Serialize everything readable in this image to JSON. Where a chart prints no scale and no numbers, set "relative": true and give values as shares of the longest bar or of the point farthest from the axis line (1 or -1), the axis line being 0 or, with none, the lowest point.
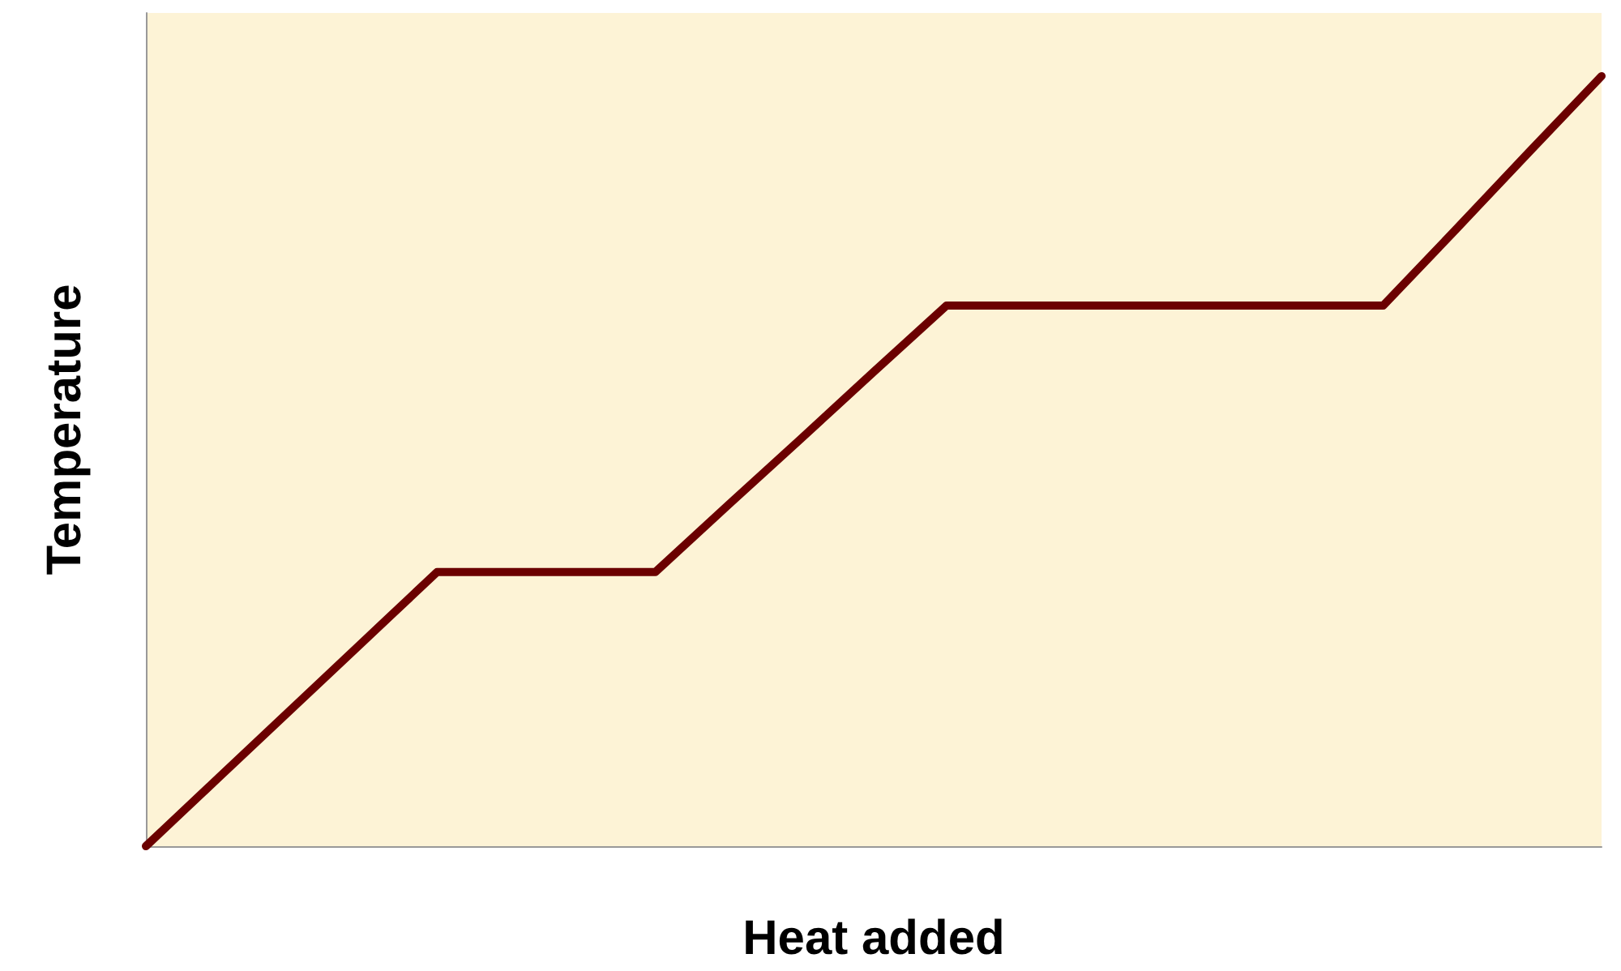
{
  "chart_data": {
    "type": "line",
    "xlabel": "Heat added",
    "ylabel": "Temperature",
    "relative": true,
    "grid": false,
    "line_style": "solid",
    "categories": [
      null,
      null,
      null,
      null,
      null,
      null,
      null,
      null,
      null,
      null,
      null,
      null,
      null,
      null,
      null,
      null,
      null,
      null,
      null,
      null,
      null
    ],
    "series": [
      {
        "color": "#6b0000",
        "values": [
          0,
          0.089,
          0.178,
          0.267,
          0.356,
          0.356,
          0.356,
          0.356,
          0.443,
          0.529,
          0.616,
          0.702,
          0.702,
          0.702,
          0.702,
          0.702,
          0.702,
          0.702,
          0.801,
          0.901,
          1
        ]
      }
    ]
  }
}
